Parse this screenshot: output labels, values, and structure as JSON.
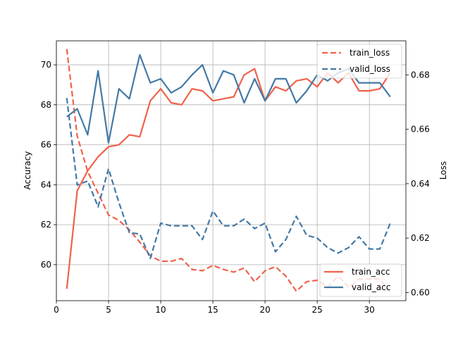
{
  "chart_data": {
    "type": "line",
    "xlabel": "",
    "ylabel_left": "Accuracy",
    "ylabel_right": "Loss",
    "xlim": [
      0,
      33.5
    ],
    "ylim_left": [
      58.2,
      71.2
    ],
    "ylim_right": [
      0.597,
      0.6925
    ],
    "x_ticks": [
      0,
      5,
      10,
      15,
      20,
      25,
      30
    ],
    "y_ticks_left": [
      60,
      62,
      64,
      66,
      68,
      70
    ],
    "y_ticks_right": [
      0.6,
      0.62,
      0.64,
      0.66,
      0.68
    ],
    "grid": true,
    "x": [
      1,
      2,
      3,
      4,
      5,
      6,
      7,
      8,
      9,
      10,
      11,
      12,
      13,
      14,
      15,
      16,
      17,
      18,
      19,
      20,
      21,
      22,
      23,
      24,
      25,
      26,
      27,
      28,
      29,
      30,
      31,
      32
    ],
    "accuracy_series": [
      {
        "name": "train_acc",
        "color": "#f0624b",
        "style": "solid",
        "values": [
          58.8,
          63.7,
          64.7,
          65.4,
          65.9,
          66.0,
          66.5,
          66.4,
          68.2,
          68.8,
          68.1,
          68.0,
          68.8,
          68.7,
          68.2,
          68.3,
          68.4,
          69.5,
          69.8,
          68.2,
          68.9,
          68.7,
          69.2,
          69.3,
          68.9,
          69.6,
          69.1,
          69.6,
          68.7,
          68.7,
          68.8,
          69.6
        ]
      },
      {
        "name": "valid_acc",
        "color": "#4479a6",
        "style": "solid",
        "values": [
          67.4,
          67.8,
          66.5,
          69.7,
          66.1,
          68.8,
          68.3,
          70.5,
          69.1,
          69.3,
          68.6,
          68.9,
          69.5,
          70.0,
          68.6,
          69.7,
          69.5,
          68.1,
          69.3,
          68.2,
          69.3,
          69.3,
          68.1,
          68.7,
          69.5,
          69.2,
          69.6,
          69.8,
          69.1,
          69.1,
          69.1,
          68.4
        ]
      }
    ],
    "loss_series": [
      {
        "name": "train_loss",
        "color": "#f0624b",
        "style": "dashed",
        "values": [
          0.6895,
          0.6575,
          0.6445,
          0.6365,
          0.6285,
          0.6265,
          0.623,
          0.6185,
          0.6135,
          0.6115,
          0.6115,
          0.6125,
          0.6085,
          0.608,
          0.61,
          0.6085,
          0.6075,
          0.609,
          0.604,
          0.608,
          0.6095,
          0.606,
          0.6005,
          0.604,
          0.6045,
          0.602,
          0.606,
          0.602,
          0.605,
          0.605,
          0.605,
          0.6
        ]
      },
      {
        "name": "valid_loss",
        "color": "#4479a6",
        "style": "dashed",
        "values": [
          0.6715,
          0.6395,
          0.641,
          0.6315,
          0.6455,
          0.633,
          0.622,
          0.6215,
          0.6125,
          0.6255,
          0.6245,
          0.6245,
          0.6245,
          0.6195,
          0.63,
          0.6245,
          0.6245,
          0.627,
          0.6235,
          0.6255,
          0.615,
          0.6195,
          0.628,
          0.621,
          0.62,
          0.6165,
          0.6145,
          0.6165,
          0.6205,
          0.616,
          0.616,
          0.6255
        ]
      }
    ],
    "legend_top": {
      "placement": "top-right",
      "entries": [
        "train_loss",
        "valid_loss"
      ]
    },
    "legend_bottom": {
      "placement": "bottom-right",
      "entries": [
        "train_acc",
        "valid_acc"
      ]
    }
  }
}
